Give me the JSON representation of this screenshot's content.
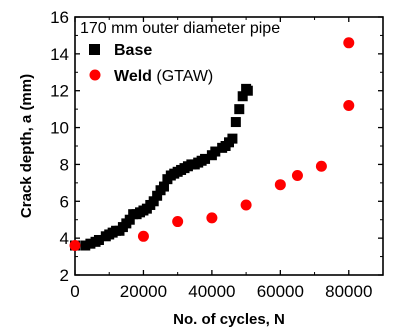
{
  "chart_data": {
    "type": "scatter",
    "xlabel": "No. of cycles, N",
    "ylabel": "Crack depth, a (mm)",
    "xlim": [
      0,
      90000
    ],
    "ylim": [
      2,
      16
    ],
    "xticks": [
      0,
      20000,
      40000,
      60000,
      80000
    ],
    "yticks": [
      2,
      4,
      6,
      8,
      10,
      12,
      14,
      16
    ],
    "grid": false,
    "annotation": "170 mm outer diameter pipe",
    "legend_position": "top-left",
    "series": [
      {
        "name": "Base",
        "marker": "square",
        "color": "#000000",
        "x": [
          0,
          3000,
          4500,
          6000,
          7000,
          9000,
          10000,
          11000,
          12000,
          13000,
          14000,
          15000,
          16000,
          17000,
          18000,
          19000,
          20000,
          21000,
          22000,
          23000,
          24000,
          25000,
          26000,
          27000,
          28000,
          29000,
          30000,
          31000,
          32000,
          33000,
          34000,
          35000,
          36000,
          37000,
          38000,
          40000,
          41000,
          43000,
          44000,
          45000,
          46000,
          47000,
          48000,
          49000,
          50000,
          50500
        ],
        "values": [
          3.6,
          3.6,
          3.7,
          3.8,
          3.9,
          4.1,
          4.2,
          4.3,
          4.4,
          4.4,
          4.6,
          4.8,
          5.0,
          5.3,
          5.3,
          5.4,
          5.5,
          5.6,
          5.8,
          6.0,
          6.3,
          6.6,
          6.8,
          7.2,
          7.4,
          7.5,
          7.6,
          7.7,
          7.8,
          7.9,
          8.0,
          8.0,
          8.1,
          8.2,
          8.3,
          8.5,
          8.7,
          8.9,
          9.0,
          9.2,
          9.4,
          10.3,
          11.0,
          11.7,
          12.1,
          12.0
        ],
        "label_bold": "Base",
        "label_rest": ""
      },
      {
        "name": "Weld (GTAW)",
        "marker": "circle",
        "color": "#ff0000",
        "x": [
          0,
          20000,
          30000,
          40000,
          50000,
          60000,
          65000,
          72000,
          80000,
          80000
        ],
        "values": [
          3.6,
          4.1,
          4.9,
          5.1,
          5.8,
          6.9,
          7.4,
          7.9,
          11.2,
          14.6
        ],
        "label_bold": "Weld",
        "label_rest": " (GTAW)"
      }
    ]
  }
}
